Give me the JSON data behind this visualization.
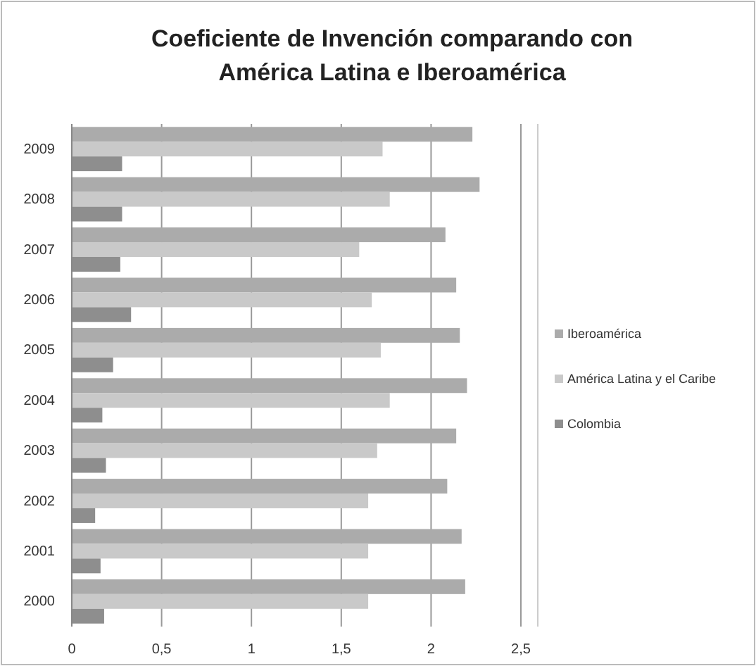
{
  "chart_data": {
    "type": "bar",
    "orientation": "horizontal",
    "title": "Coeficiente de Invención  comparando con América Latina e Iberoamérica",
    "categories": [
      "2009",
      "2008",
      "2007",
      "2006",
      "2005",
      "2004",
      "2003",
      "2002",
      "2001",
      "2000"
    ],
    "series": [
      {
        "name": "Iberoamérica",
        "color": "#ababab",
        "values": [
          2.23,
          2.27,
          2.08,
          2.14,
          2.16,
          2.2,
          2.14,
          2.09,
          2.17,
          2.19
        ]
      },
      {
        "name": "América Latina y el Caribe",
        "color": "#c9c9c9",
        "values": [
          1.73,
          1.77,
          1.6,
          1.67,
          1.72,
          1.77,
          1.7,
          1.65,
          1.65,
          1.65
        ]
      },
      {
        "name": "Colombia",
        "color": "#8e8e8e",
        "values": [
          0.28,
          0.28,
          0.27,
          0.33,
          0.23,
          0.17,
          0.19,
          0.13,
          0.16,
          0.18
        ]
      }
    ],
    "xlim": [
      0,
      2.5
    ],
    "xticks": [
      0,
      {
        "value": 0.5,
        "label": "0,5"
      },
      1,
      {
        "value": 1.5,
        "label": "1,5"
      },
      2,
      {
        "value": 2.5,
        "label": "2,5"
      }
    ],
    "grid": "x",
    "legend": "right"
  }
}
